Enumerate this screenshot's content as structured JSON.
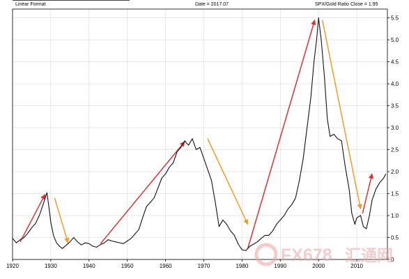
{
  "header": {
    "left": "Linear Format",
    "center": "Date = 2017.07",
    "right": "SPX/Gold Ratio Close = 1.95"
  },
  "watermark": {
    "brand": "FX678",
    "cn": "汇通网"
  },
  "colors": {
    "up_arrow": "#e03030",
    "down_arrow": "#f59a23",
    "series": "#111111"
  },
  "chart_data": {
    "type": "line",
    "title": "",
    "xlabel": "",
    "ylabel": "",
    "xlim": [
      1920,
      2018
    ],
    "ylim": [
      0,
      5.7
    ],
    "x_ticks": [
      1920,
      1930,
      1940,
      1950,
      1960,
      1970,
      1980,
      1990,
      2000,
      2010
    ],
    "y_ticks": [
      0,
      0.5,
      1.0,
      1.5,
      2.0,
      2.5,
      3.0,
      3.5,
      4.0,
      4.5,
      5.0,
      5.5
    ],
    "y_tick_labels": [
      "0",
      "0.5",
      "1.0",
      "1.5",
      "2.0",
      "2.5",
      "3.0",
      "3.5",
      "4.0",
      "4.5",
      "5.0",
      "5.5"
    ],
    "grid": true,
    "y_axis_side": "right",
    "series": [
      {
        "x": [
          1920.0,
          1921.0,
          1922.0,
          1923.0,
          1924.0,
          1925.0,
          1926.0,
          1927.0,
          1928.0,
          1928.7,
          1929.0,
          1929.5,
          1930.0,
          1930.7,
          1931.5,
          1932.3,
          1933.0,
          1934.0,
          1935.0,
          1936.0,
          1937.0,
          1938.0,
          1939.0,
          1940.0,
          1941.0,
          1942.0,
          1943.0,
          1944.0,
          1945.0,
          1946.0,
          1947.0,
          1948.0,
          1949.0,
          1950.0,
          1951.0,
          1952.0,
          1953.0,
          1954.0,
          1955.0,
          1956.0,
          1957.0,
          1958.0,
          1959.0,
          1960.0,
          1961.0,
          1962.0,
          1963.0,
          1964.0,
          1965.0,
          1966.0,
          1967.0,
          1968.0,
          1969.0,
          1970.0,
          1971.0,
          1972.0,
          1973.0,
          1974.0,
          1975.0,
          1976.0,
          1977.0,
          1978.0,
          1979.0,
          1980.0,
          1981.0,
          1982.0,
          1983.0,
          1984.0,
          1985.0,
          1986.0,
          1987.0,
          1988.0,
          1989.0,
          1990.0,
          1991.0,
          1992.0,
          1993.0,
          1994.0,
          1995.0,
          1996.0,
          1997.0,
          1998.0,
          1998.8,
          1999.5,
          2000.0,
          2000.7,
          2001.5,
          2002.3,
          2003.0,
          2004.0,
          2005.0,
          2006.0,
          2007.0,
          2008.0,
          2008.7,
          2009.5,
          2010.0,
          2011.0,
          2011.7,
          2012.5,
          2013.3,
          2014.0,
          2015.0,
          2016.0,
          2017.0,
          2017.6
        ],
        "values": [
          0.48,
          0.38,
          0.45,
          0.5,
          0.6,
          0.72,
          0.82,
          1.0,
          1.25,
          1.45,
          1.52,
          1.2,
          0.85,
          0.55,
          0.38,
          0.3,
          0.25,
          0.32,
          0.4,
          0.5,
          0.4,
          0.33,
          0.38,
          0.36,
          0.3,
          0.28,
          0.34,
          0.38,
          0.45,
          0.42,
          0.4,
          0.38,
          0.36,
          0.42,
          0.48,
          0.58,
          0.68,
          0.95,
          1.2,
          1.3,
          1.4,
          1.62,
          1.85,
          1.95,
          2.1,
          2.2,
          2.45,
          2.55,
          2.7,
          2.6,
          2.75,
          2.5,
          2.55,
          2.3,
          2.05,
          1.8,
          1.3,
          0.75,
          0.9,
          0.8,
          0.65,
          0.55,
          0.35,
          0.22,
          0.2,
          0.3,
          0.35,
          0.4,
          0.48,
          0.55,
          0.55,
          0.65,
          0.8,
          0.9,
          1.0,
          1.15,
          1.25,
          1.4,
          1.8,
          2.3,
          3.0,
          3.7,
          4.5,
          5.0,
          5.5,
          5.0,
          4.2,
          3.2,
          2.8,
          2.85,
          2.75,
          2.7,
          2.1,
          1.6,
          1.05,
          0.8,
          0.95,
          1.0,
          0.75,
          0.7,
          1.0,
          1.35,
          1.6,
          1.75,
          1.85,
          1.95
        ]
      }
    ],
    "annotations": [
      {
        "type": "arrow",
        "trend": "up",
        "from": [
          1922.0,
          0.4
        ],
        "to": [
          1928.5,
          1.48
        ]
      },
      {
        "type": "arrow",
        "trend": "down",
        "from": [
          1931.0,
          1.4
        ],
        "to": [
          1934.5,
          0.38
        ]
      },
      {
        "type": "arrow",
        "trend": "up",
        "from": [
          1943.0,
          0.36
        ],
        "to": [
          1965.0,
          2.68
        ]
      },
      {
        "type": "arrow",
        "trend": "down",
        "from": [
          1971.0,
          2.75
        ],
        "to": [
          1981.5,
          0.8
        ]
      },
      {
        "type": "arrow",
        "trend": "up",
        "from": [
          1981.5,
          0.25
        ],
        "to": [
          1999.0,
          5.45
        ]
      },
      {
        "type": "arrow",
        "trend": "down",
        "from": [
          2001.0,
          5.45
        ],
        "to": [
          2011.0,
          1.15
        ]
      },
      {
        "type": "arrow",
        "trend": "up",
        "from": [
          2011.5,
          1.05
        ],
        "to": [
          2014.0,
          1.95
        ]
      }
    ]
  }
}
